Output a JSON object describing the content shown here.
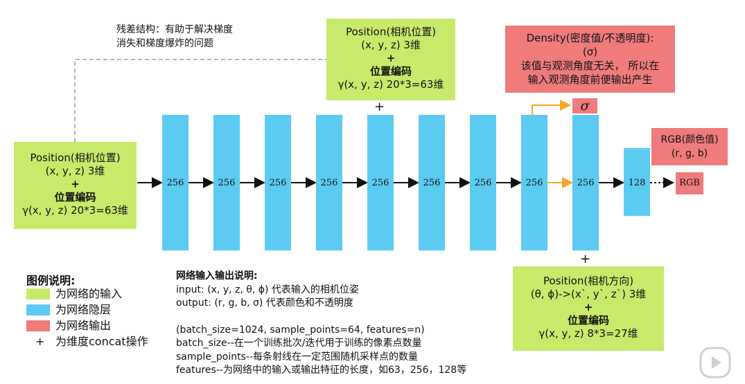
{
  "residual_note": [
    "残差结构：有助于解决梯度",
    "消失和梯度爆炸的问题"
  ],
  "input_box": {
    "title": "Position(相机位置)",
    "line2": "(x, y, z) 3维",
    "plus": "+",
    "line4": "位置编码",
    "line5": "γ(x, y, z)  20*3=63维"
  },
  "top_box": {
    "title": "Position(相机位置)",
    "line2": "(x, y, z) 3维",
    "plus": "+",
    "line4": "位置编码",
    "line5": "γ(x, y, z)  20*3=63维"
  },
  "density_box": {
    "title": "Density(密度值/不透明度):",
    "line2": "(σ)",
    "line3": "该值与观测角度无关， 所以在",
    "line4": "输入观测角度前便输出产生"
  },
  "sigma_label": "σ",
  "rgb_box": {
    "title": "RGB(颜色值)",
    "line2": "(r, g, b)"
  },
  "rgb_out_label": "RGB",
  "direction_box": {
    "title": "Position(相机方向)",
    "line2": "(θ, ϕ)->(x`, y`, z`) 3维",
    "plus": "+",
    "line4": "位置编码",
    "line5": "γ(x, y, z)  8*3=27维"
  },
  "plus_top": "+",
  "plus_bottom": "+",
  "layers": [
    "256",
    "256",
    "256",
    "256",
    "256",
    "256",
    "256",
    "256",
    "256",
    "128"
  ],
  "legend": {
    "title": "图例说明:",
    "items": [
      "为网络的输入",
      "为网络隐层",
      "为网络输出",
      "为维度concat操作"
    ],
    "plus_symbol": "+",
    "colors": [
      "#c8ea6b",
      "#5ccbf2",
      "#ef7b7b"
    ]
  },
  "io_note": {
    "title": "网络输入输出说明:",
    "input": "input: (x, y, z, θ, ϕ) 代表输入的相机位姿",
    "output": "output: (r, g, b, σ) 代表颜色和不透明度",
    "params": "(batch_size=1024, sample_points=64, features=n)",
    "batch": "batch_size--在一个训练批次/迭代用于训练的像素点数量",
    "sample": "sample_points--每条射线在一定范围随机采样点的数量",
    "features": "features--为网络中的输入或输出特征的长度，如63，256，128等"
  },
  "colors": {
    "input": "#c8ea6b",
    "hidden": "#5ccbf2",
    "output": "#ef7b7b",
    "highlight_arrow": "#f5a623"
  }
}
